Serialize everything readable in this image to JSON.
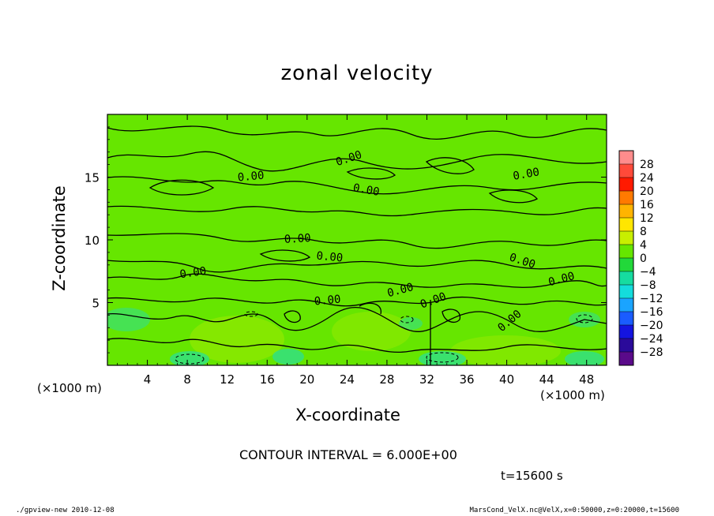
{
  "chart_data": {
    "type": "heatmap",
    "title": "zonal velocity",
    "xlabel": "X-coordinate",
    "ylabel": "Z-coordinate",
    "x_unit": "(×1000 m)",
    "y_unit": "(×1000 m)",
    "xlim": [
      0,
      50
    ],
    "ylim": [
      0,
      20
    ],
    "x_ticks": [
      4,
      8,
      12,
      16,
      20,
      24,
      28,
      32,
      36,
      40,
      44,
      48
    ],
    "y_ticks": [
      5,
      10,
      15
    ],
    "contour_interval_text": "CONTOUR INTERVAL = 6.000E+00",
    "contour_labels": [
      "0.00",
      "0.00",
      "0.00",
      "0.00",
      "0.00",
      "0.00",
      "0.00",
      "0.00",
      "0.00",
      "0.00",
      "0.00",
      "0.00",
      "0.00"
    ],
    "colorbar": {
      "levels": [
        "28",
        "24",
        "20",
        "16",
        "12",
        "8",
        "4",
        "0",
        "−4",
        "−8",
        "−12",
        "−16",
        "−20",
        "−24",
        "−28"
      ],
      "colors": [
        "#ff8c8c",
        "#ff4a3a",
        "#ff1a00",
        "#ff7a00",
        "#ffb400",
        "#ffe600",
        "#c8ef00",
        "#66e600",
        "#22d83a",
        "#16dca0",
        "#14dcdc",
        "#1aa4ff",
        "#1a5cff",
        "#1414e0",
        "#2a0a9a",
        "#5a0a8a"
      ]
    },
    "time_text": "t=15600 s"
  },
  "footer": {
    "left": "./gpview-new  2010-12-08",
    "right": "MarsCond_VelX.nc@VelX,x=0:50000,z=0:20000,t=15600"
  }
}
